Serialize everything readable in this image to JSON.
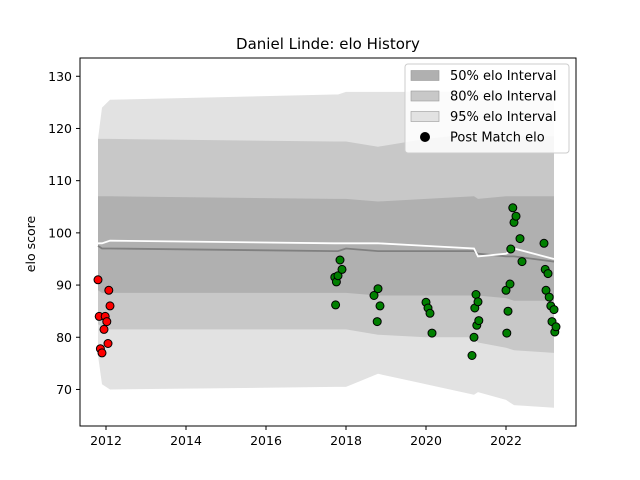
{
  "chart_data": {
    "type": "scatter",
    "title": "Daniel Linde: elo History",
    "xlabel": "",
    "ylabel": "elo score",
    "xlim": [
      2011.35,
      2023.75
    ],
    "ylim": [
      63.0,
      133.5
    ],
    "xticks": [
      2012,
      2014,
      2016,
      2018,
      2020,
      2022
    ],
    "yticks": [
      70,
      80,
      90,
      100,
      110,
      120,
      130
    ],
    "grid": false,
    "legend_position": "top-right",
    "legend": [
      {
        "label": "50% elo Interval",
        "kind": "band",
        "color": "#b0b0b0"
      },
      {
        "label": "80% elo Interval",
        "kind": "band",
        "color": "#c8c8c8"
      },
      {
        "label": "95% elo Interval",
        "kind": "band",
        "color": "#e2e2e2"
      },
      {
        "label": "Post Match elo",
        "kind": "marker",
        "color": "#000000"
      }
    ],
    "bands": {
      "x": [
        2011.8,
        2011.9,
        2012.1,
        2017.7,
        2017.8,
        2018.0,
        2018.8,
        2020.0,
        2021.2,
        2021.3,
        2022.0,
        2022.2,
        2023.2
      ],
      "p95_upper": [
        118,
        124,
        125.5,
        126.5,
        126.5,
        127,
        127,
        127,
        127,
        127,
        127,
        127,
        127
      ],
      "p95_lower": [
        76.5,
        71,
        70,
        70.5,
        70.5,
        70.5,
        73,
        71,
        69,
        69.5,
        68,
        67,
        66.5
      ],
      "p80_upper": [
        118,
        118,
        118,
        117.5,
        117.5,
        117.5,
        116.5,
        118,
        119,
        118.5,
        118.5,
        118.5,
        118.5
      ],
      "p80_lower": [
        82.5,
        82,
        81.5,
        81.5,
        81.5,
        81.5,
        80.5,
        80,
        80,
        79,
        78,
        77.5,
        77
      ],
      "p50_upper": [
        107,
        107,
        107,
        106.5,
        106.5,
        106.5,
        106,
        106.5,
        107,
        106.5,
        107,
        107,
        107
      ],
      "p50_lower": [
        89,
        88.5,
        88.5,
        88.5,
        88.5,
        88.5,
        88,
        88,
        88,
        88,
        87.5,
        87,
        87
      ]
    },
    "lines": {
      "x": [
        2011.8,
        2011.9,
        2012.1,
        2017.7,
        2017.8,
        2018.0,
        2018.8,
        2020.0,
        2021.2,
        2021.3,
        2022.0,
        2022.2,
        2023.2
      ],
      "mean": [
        98,
        98,
        98.5,
        98,
        98,
        98,
        98,
        97.5,
        97,
        95.5,
        96,
        97,
        95
      ],
      "median": [
        97.5,
        97,
        97,
        96.5,
        96.5,
        97,
        96.5,
        96.5,
        96.5,
        96,
        95.5,
        95.5,
        94.5
      ]
    },
    "series": [
      {
        "marker_color": "#ff0000",
        "points": [
          [
            2011.8,
            91
          ],
          [
            2011.83,
            84
          ],
          [
            2011.86,
            77.8
          ],
          [
            2011.9,
            77
          ],
          [
            2011.95,
            81.5
          ],
          [
            2011.98,
            84
          ],
          [
            2012.02,
            83
          ],
          [
            2012.05,
            78.8
          ],
          [
            2012.07,
            89
          ],
          [
            2012.1,
            86
          ]
        ]
      },
      {
        "marker_color": "#008000",
        "points": [
          [
            2017.72,
            91.5
          ],
          [
            2017.74,
            86.2
          ],
          [
            2017.76,
            90.6
          ],
          [
            2017.8,
            91.8
          ],
          [
            2017.85,
            94.8
          ],
          [
            2017.9,
            93
          ],
          [
            2018.7,
            88
          ],
          [
            2018.78,
            83
          ],
          [
            2018.8,
            89.3
          ],
          [
            2018.85,
            86
          ],
          [
            2020.0,
            86.7
          ],
          [
            2020.05,
            85.6
          ],
          [
            2020.1,
            84.6
          ],
          [
            2020.15,
            80.8
          ],
          [
            2021.15,
            76.5
          ],
          [
            2021.2,
            80
          ],
          [
            2021.22,
            85.6
          ],
          [
            2021.25,
            88.2
          ],
          [
            2021.27,
            82.3
          ],
          [
            2021.3,
            86.8
          ],
          [
            2021.32,
            83.2
          ],
          [
            2022.0,
            89
          ],
          [
            2022.02,
            80.8
          ],
          [
            2022.05,
            85
          ],
          [
            2022.1,
            90.2
          ],
          [
            2022.12,
            96.9
          ],
          [
            2022.17,
            104.8
          ],
          [
            2022.2,
            102
          ],
          [
            2022.25,
            103.2
          ],
          [
            2022.35,
            98.9
          ],
          [
            2022.4,
            94.5
          ],
          [
            2022.95,
            98
          ],
          [
            2022.98,
            93
          ],
          [
            2023.0,
            89
          ],
          [
            2023.05,
            92.2
          ],
          [
            2023.08,
            87.7
          ],
          [
            2023.12,
            86
          ],
          [
            2023.15,
            83
          ],
          [
            2023.2,
            85.3
          ],
          [
            2023.22,
            81
          ],
          [
            2023.25,
            82
          ]
        ]
      }
    ]
  }
}
